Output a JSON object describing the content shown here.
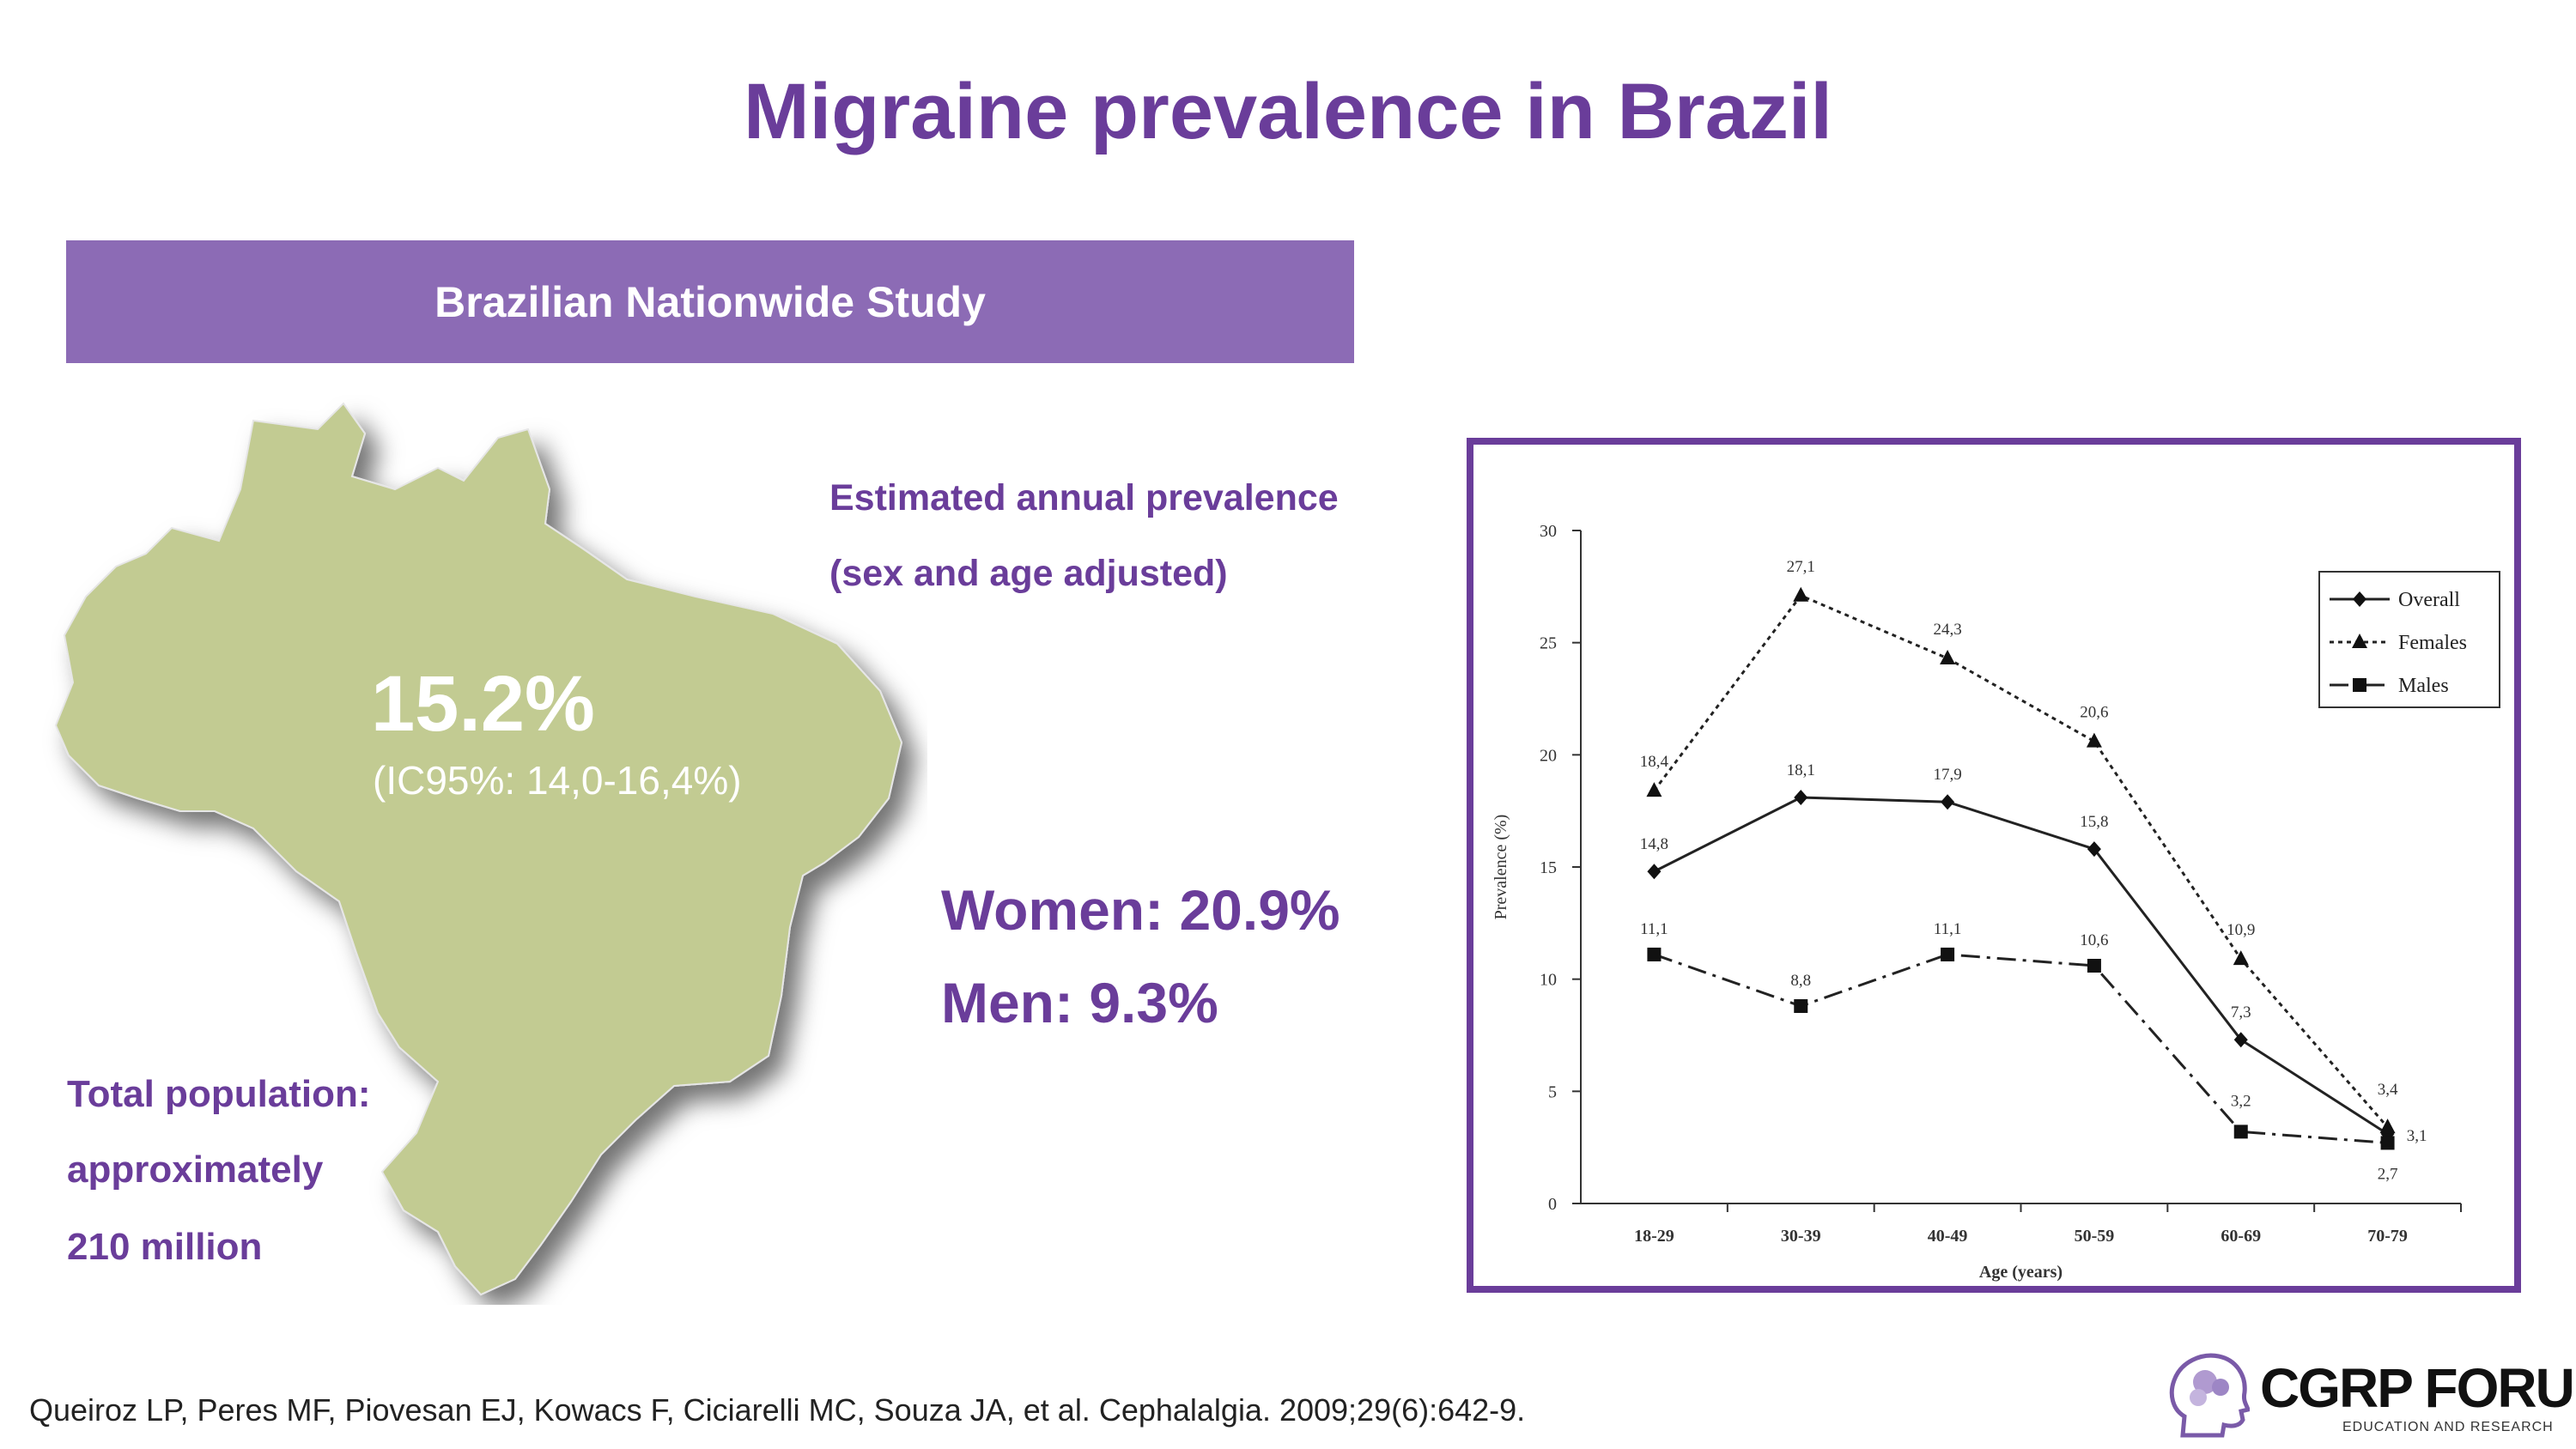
{
  "slide": {
    "title": "Migraine prevalence in Brazil",
    "banner": "Brazilian Nationwide Study",
    "estimated_line1": "Estimated annual prevalence",
    "estimated_line2": "(sex and age adjusted)",
    "overall_pct": "15.2%",
    "ci": "(IC95%: 14,0-16,4%)",
    "women": "Women: 20.9%",
    "men": "Men: 9.3%",
    "population_line1": "Total population:",
    "population_line2": "approximately",
    "population_line3": "210 million",
    "citation": "Queiroz LP, Peres MF, Piovesan EJ, Kowacs F, Ciciarelli MC, Souza JA, et al. Cephalalgia. 2009;29(6):642-9.",
    "logo_name": "CGRP FORUM",
    "logo_sub": "EDUCATION AND RESEARCH"
  },
  "colors": {
    "accent": "#6a3d9a",
    "banner": "#8c6bb5",
    "map_fill": "#c2cb92"
  },
  "icons": {
    "map": "brazil-map",
    "logo": "head-brain-icon"
  },
  "chart_data": {
    "type": "line",
    "xlabel": "Age (years)",
    "ylabel": "Prevalence (%)",
    "categories": [
      "18-29",
      "30-39",
      "40-49",
      "50-59",
      "60-69",
      "70-79"
    ],
    "ylim": [
      0,
      30
    ],
    "yticks": [
      0,
      5,
      10,
      15,
      20,
      25,
      30
    ],
    "legend_position": "top-right",
    "series": [
      {
        "name": "Overall",
        "values": [
          14.8,
          18.1,
          17.9,
          15.8,
          7.3,
          3.1
        ],
        "labels": [
          "14,8",
          "18,1",
          "17,9",
          "15,8",
          "7,3",
          "3,1"
        ],
        "marker": "diamond",
        "dash": "solid"
      },
      {
        "name": "Females",
        "values": [
          18.4,
          27.1,
          24.3,
          20.6,
          10.9,
          3.4
        ],
        "labels": [
          "18,4",
          "27,1",
          "24,3",
          "20,6",
          "10,9",
          "3,4"
        ],
        "marker": "triangle",
        "dash": "dotted"
      },
      {
        "name": "Males",
        "values": [
          11.1,
          8.8,
          11.1,
          10.6,
          3.2,
          2.7
        ],
        "labels": [
          "11,1",
          "8,8",
          "11,1",
          "10,6",
          "3,2",
          "2,7"
        ],
        "marker": "square",
        "dash": "dashdot"
      }
    ]
  }
}
